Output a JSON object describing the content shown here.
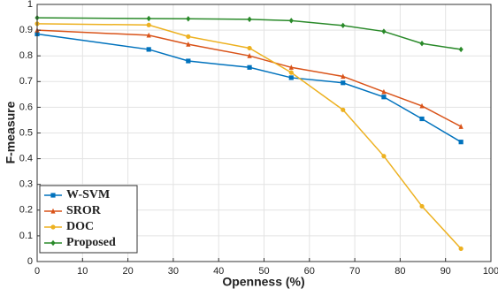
{
  "chart_data": {
    "type": "line",
    "xlabel": "Openness (%)",
    "ylabel": "F-measure",
    "x": [
      0,
      24.6,
      33.3,
      46.8,
      56,
      67.4,
      76.4,
      84.8,
      93.4
    ],
    "series": [
      {
        "name": "W-SVM",
        "color": "#0072bd",
        "marker": "square",
        "values": [
          0.885,
          0.825,
          0.78,
          0.755,
          0.715,
          0.695,
          0.64,
          0.555,
          0.465
        ]
      },
      {
        "name": "SROR",
        "color": "#d95319",
        "marker": "triangle",
        "values": [
          0.9,
          0.88,
          0.845,
          0.8,
          0.755,
          0.72,
          0.66,
          0.605,
          0.525
        ]
      },
      {
        "name": "DOC",
        "color": "#edb120",
        "marker": "circle",
        "values": [
          0.925,
          0.92,
          0.875,
          0.83,
          0.735,
          0.59,
          0.41,
          0.215,
          0.05
        ]
      },
      {
        "name": "Proposed",
        "color": "#2a8a2a",
        "marker": "diamond",
        "values": [
          0.948,
          0.945,
          0.944,
          0.942,
          0.937,
          0.918,
          0.895,
          0.848,
          0.825
        ]
      }
    ],
    "xlim": [
      0,
      100
    ],
    "xticks": [
      0,
      10,
      20,
      30,
      40,
      50,
      60,
      70,
      80,
      90,
      100
    ],
    "ylim": [
      0,
      1
    ],
    "yticks": [
      0,
      0.1,
      0.2,
      0.3,
      0.4,
      0.5,
      0.6,
      0.7,
      0.8,
      0.9,
      1
    ],
    "grid": true,
    "legend": "lower left"
  }
}
